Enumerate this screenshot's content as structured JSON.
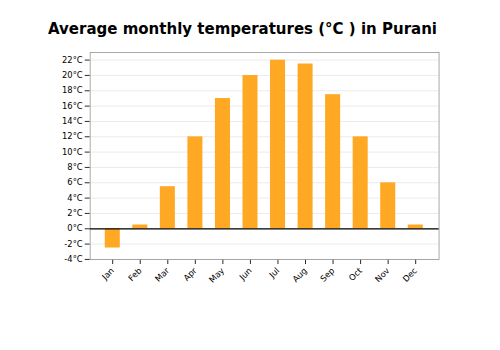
{
  "chart_data": {
    "type": "bar",
    "title": "Average monthly temperatures (°C ) in Purani",
    "categories": [
      "Jan",
      "Feb",
      "Mar",
      "Apr",
      "May",
      "Jun",
      "Jul",
      "Aug",
      "Sep",
      "Oct",
      "Nov",
      "Dec"
    ],
    "values": [
      -2.5,
      0.5,
      5.5,
      12.0,
      17.0,
      20.0,
      22.0,
      21.5,
      17.5,
      12.0,
      6.0,
      0.5
    ],
    "color": "#FFA824",
    "ylim": [
      -4,
      23
    ],
    "yticks": [
      {
        "value": -4,
        "label": "-4°C"
      },
      {
        "value": -2,
        "label": "-2°C"
      },
      {
        "value": 0,
        "label": "0°C"
      },
      {
        "value": 2,
        "label": "2°C"
      },
      {
        "value": 4,
        "label": "4°C"
      },
      {
        "value": 6,
        "label": "6°C"
      },
      {
        "value": 8,
        "label": "8°C"
      },
      {
        "value": 10,
        "label": "10°C"
      },
      {
        "value": 12,
        "label": "12°C"
      },
      {
        "value": 14,
        "label": "14°C"
      },
      {
        "value": 16,
        "label": "16°C"
      },
      {
        "value": 18,
        "label": "18°C"
      },
      {
        "value": 20,
        "label": "20°C"
      },
      {
        "value": 22,
        "label": "22°C"
      }
    ],
    "grid": true
  }
}
